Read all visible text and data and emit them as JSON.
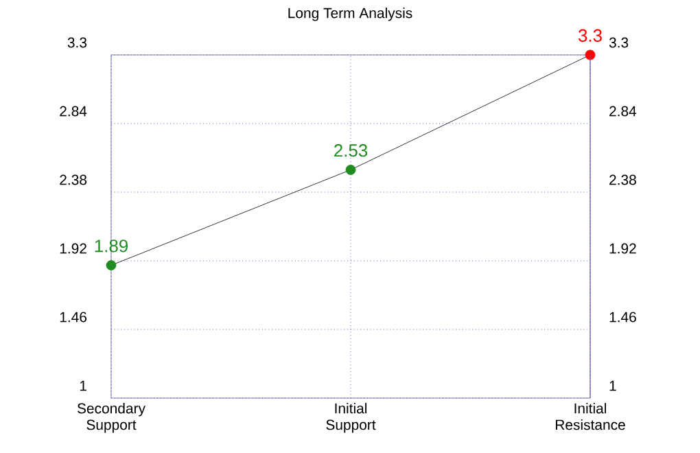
{
  "chart_data": {
    "type": "line",
    "title": "Long Term Analysis",
    "categories": [
      "Secondary Support",
      "Initial Support",
      "Initial Resistance"
    ],
    "series": [
      {
        "color": "#000000",
        "colors": [
          "#228b22",
          "#228b22",
          "#ff0000"
        ],
        "values": [
          1.89,
          2.53,
          3.3
        ]
      }
    ],
    "ylim": [
      1,
      3.3
    ],
    "yticks": [
      1,
      1.46,
      1.92,
      2.38,
      2.84,
      3.3
    ],
    "y2lim": [
      1,
      3.3
    ],
    "y2ticks": [
      1,
      1.46,
      1.92,
      2.38,
      2.84,
      3.3
    ],
    "grid": true,
    "marker": "circle",
    "line_style": "solid",
    "data_labels": true
  }
}
